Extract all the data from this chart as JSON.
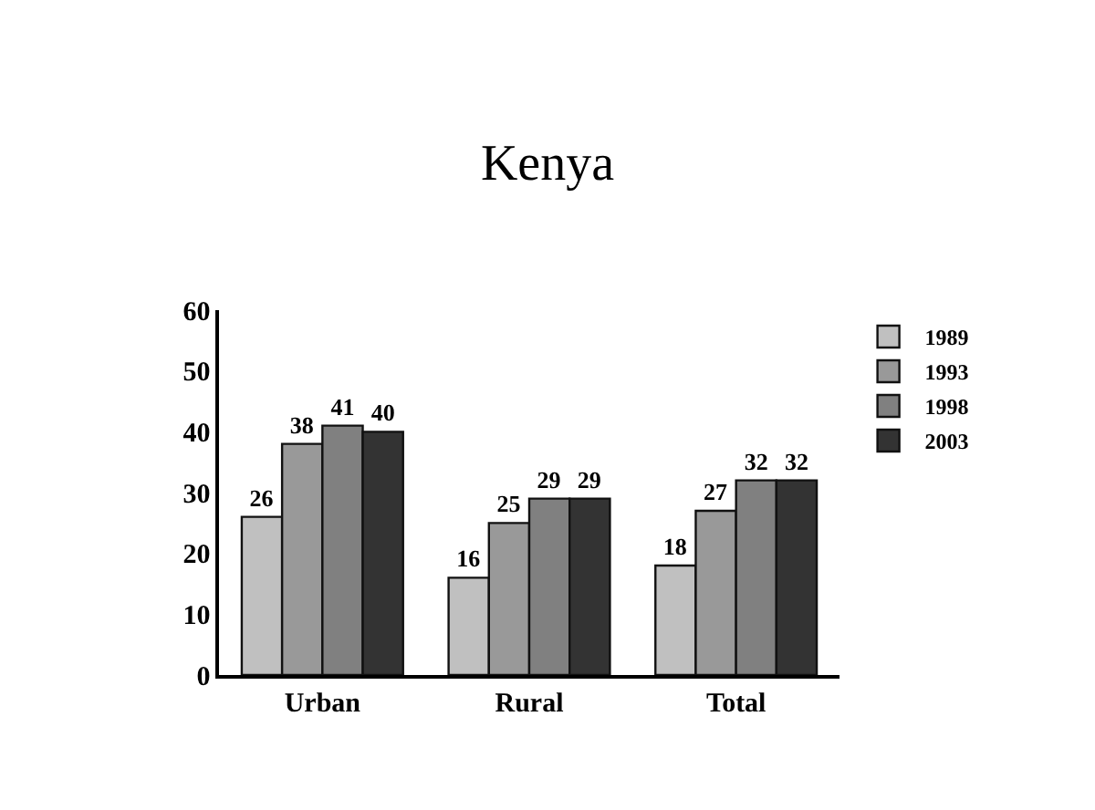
{
  "chart_data": {
    "type": "bar",
    "title": "Kenya",
    "categories": [
      "Urban",
      "Rural",
      "Total"
    ],
    "series": [
      {
        "name": "1989",
        "color": "#c0c0c0",
        "values": [
          26,
          16,
          18
        ]
      },
      {
        "name": "1993",
        "color": "#999999",
        "values": [
          38,
          25,
          27
        ]
      },
      {
        "name": "1998",
        "color": "#808080",
        "values": [
          41,
          29,
          32
        ]
      },
      {
        "name": "2003",
        "color": "#333333",
        "values": [
          40,
          29,
          32
        ]
      }
    ],
    "ylim": [
      0,
      60
    ],
    "yticks": [
      0,
      10,
      20,
      30,
      40,
      50,
      60
    ],
    "legend": "top right",
    "data_labels": true
  }
}
